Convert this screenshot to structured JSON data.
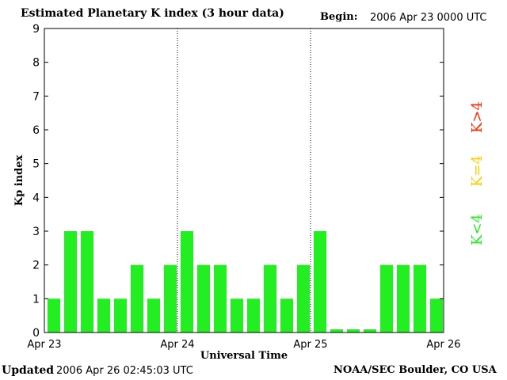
{
  "header": {
    "title": "Estimated Planetary K index (3 hour data)",
    "begin_label": "Begin:",
    "begin_value": "2006 Apr 23 0000 UTC"
  },
  "footer": {
    "updated_label": "Updated",
    "updated_value": "2006 Apr 26 02:45:03 UTC",
    "credit": "NOAA/SEC Boulder, CO USA"
  },
  "legend": [
    {
      "label": "K>4",
      "color": "#ff2a00"
    },
    {
      "label": "K=4",
      "color": "#ffcc00"
    },
    {
      "label": "K<4",
      "color": "#22ee22"
    }
  ],
  "chart_data": {
    "type": "bar",
    "title": "Estimated Planetary K index (3 hour data)",
    "xlabel": "Universal Time",
    "ylabel": "Kp index",
    "ylim": [
      0,
      9
    ],
    "y_ticks": [
      "0",
      "1",
      "2",
      "3",
      "4",
      "5",
      "6",
      "7",
      "8",
      "9"
    ],
    "x_tick_labels": [
      "Apr 23",
      "Apr 24",
      "Apr 25",
      "Apr 26"
    ],
    "bar_color": "#22ee22",
    "values": [
      1,
      3,
      3,
      1,
      1,
      2,
      1,
      2,
      3,
      2,
      2,
      1,
      1,
      2,
      1,
      2,
      3,
      0,
      0,
      0,
      2,
      2,
      2,
      1
    ]
  }
}
